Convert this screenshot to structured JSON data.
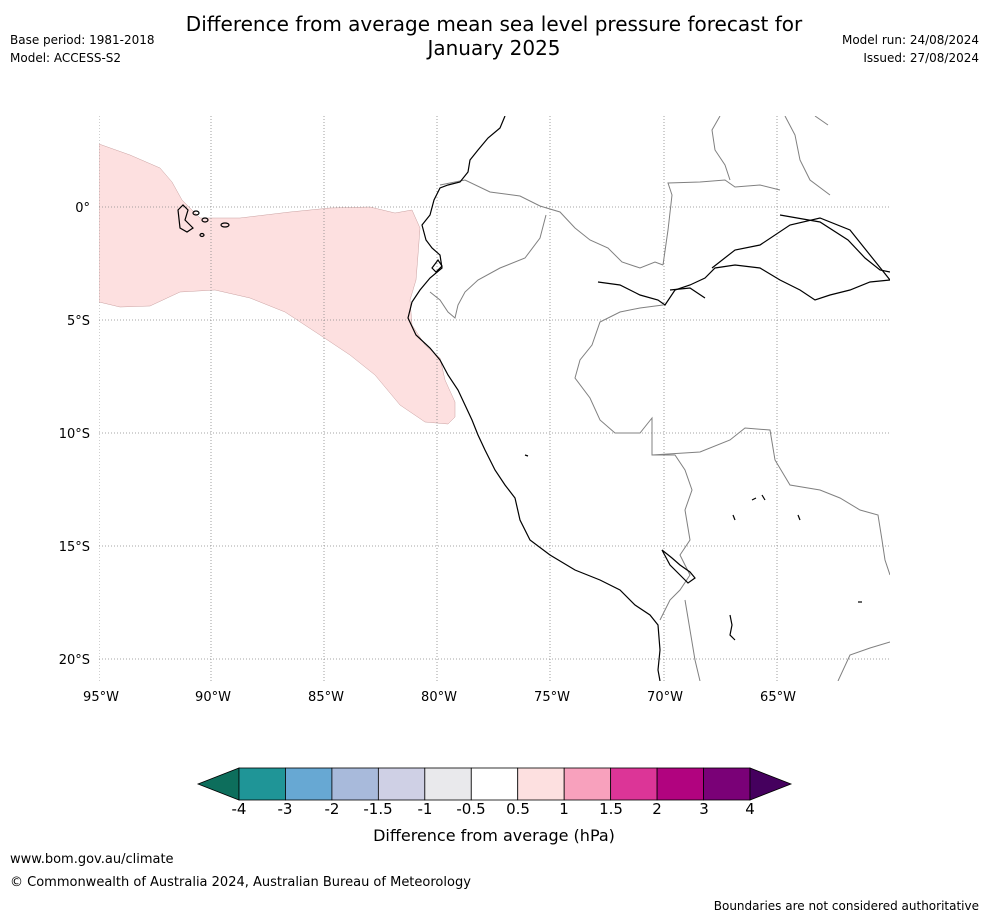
{
  "header": {
    "title_line1": "Difference from average mean sea level pressure forecast for",
    "title_line2": "January 2025",
    "base_period": "Base period: 1981-2018",
    "model": "Model: ACCESS-S2",
    "model_run": "Model run: 24/08/2024",
    "issued": "Issued: 27/08/2024"
  },
  "map": {
    "lat_labels": [
      "0°",
      "5°S",
      "10°S",
      "15°S",
      "20°S"
    ],
    "lon_labels": [
      "95°W",
      "90°W",
      "85°W",
      "80°W",
      "75°W",
      "70°W",
      "65°W"
    ],
    "anomaly_color": "#fde0e0",
    "coast_color": "#000000",
    "border_color": "#808080",
    "grid_style": "dotted"
  },
  "colorbar": {
    "label": "Difference from average (hPa)",
    "ticks": [
      "-4",
      "-3",
      "-2",
      "-1.5",
      "-1",
      "-0.5",
      "0.5",
      "1",
      "1.5",
      "2",
      "3",
      "4"
    ],
    "low_color": "#0d6e5c",
    "high_color": "#45005e",
    "colors": [
      "#1f9597",
      "#67a8d3",
      "#a8badb",
      "#cfd0e5",
      "#e9e9ec",
      "#ffffff",
      "#fde0e0",
      "#f8a1bd",
      "#dc3597",
      "#b1037f",
      "#7a0177"
    ]
  },
  "footer": {
    "url": "www.bom.gov.au/climate",
    "copyright": "© Commonwealth of Australia 2024, Australian Bureau of Meteorology",
    "disclaimer": "Boundaries are not considered authoritative"
  }
}
